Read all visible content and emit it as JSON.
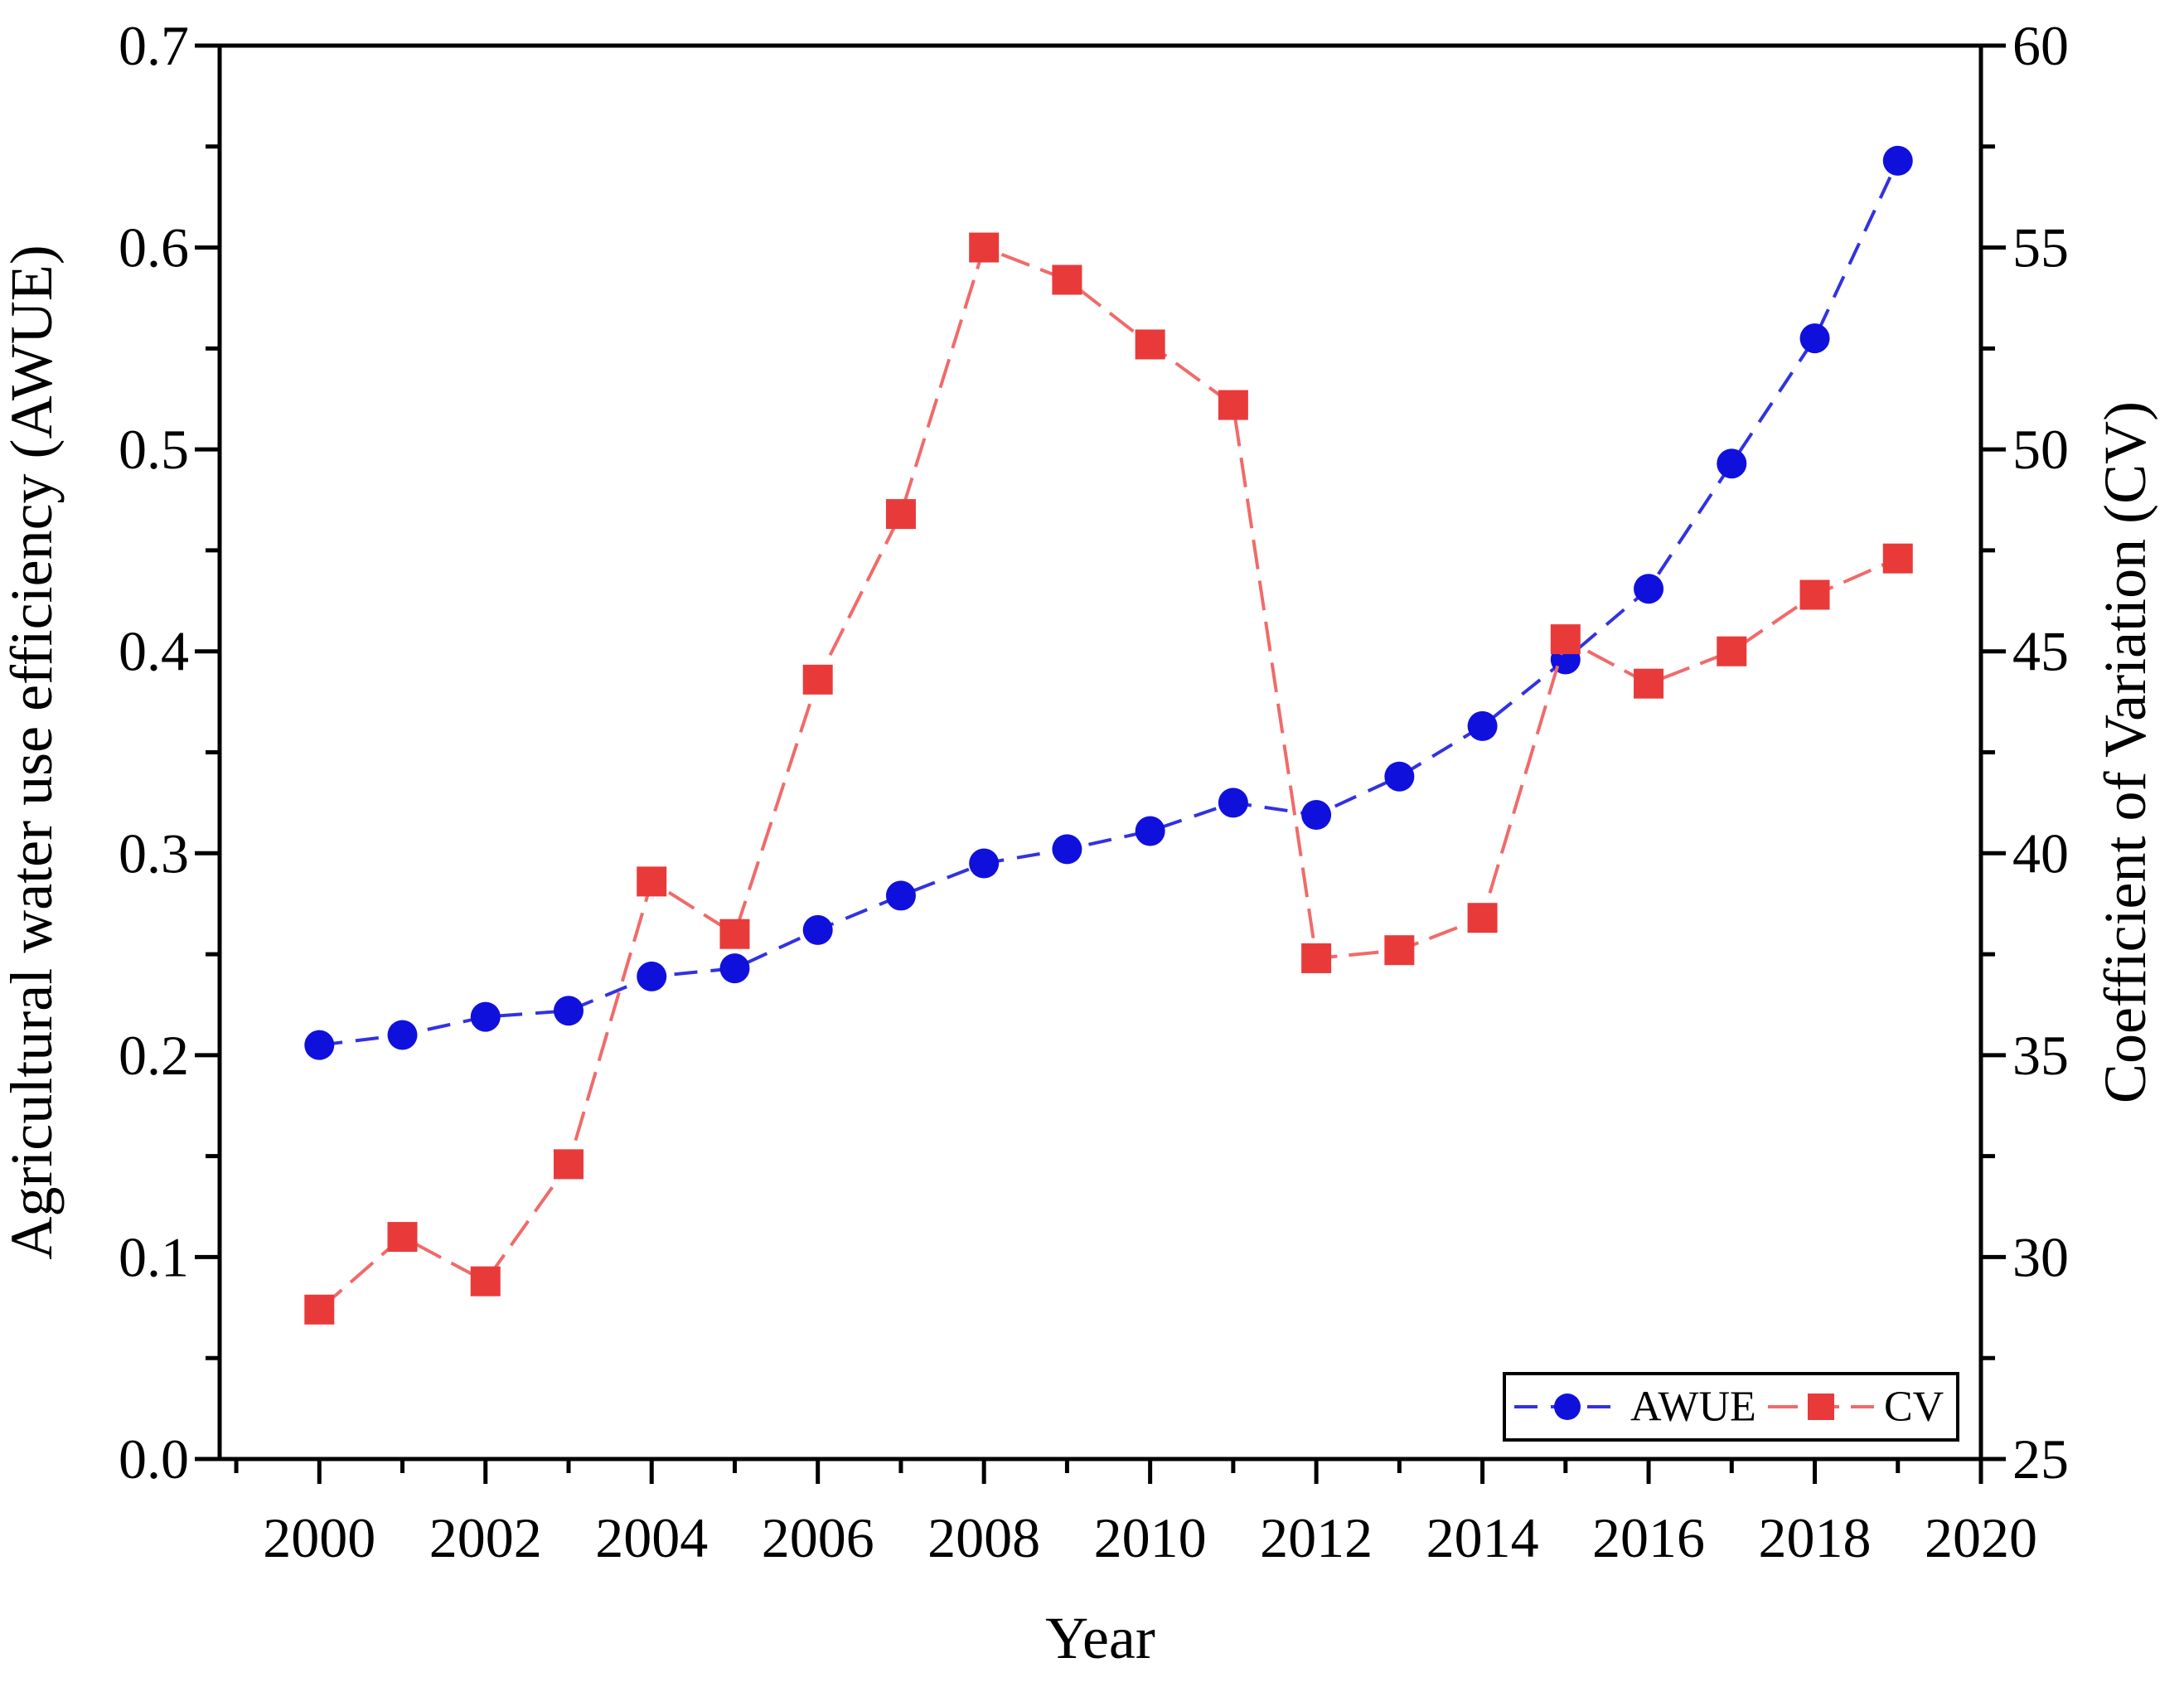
{
  "figure": {
    "aria_label": "Dual axis line chart of Agricultural water use efficiency (AWUE) and Coefficient of Variation (CV) from 2000 to 2019"
  },
  "chart_data": {
    "type": "line",
    "title": "",
    "x": [
      2000,
      2001,
      2002,
      2003,
      2004,
      2005,
      2006,
      2007,
      2008,
      2009,
      2010,
      2011,
      2012,
      2013,
      2014,
      2015,
      2016,
      2017,
      2018,
      2019
    ],
    "series": [
      {
        "name": "AWUE",
        "axis": "left",
        "marker": "circle",
        "line_color": "#3232e2",
        "marker_color": "#1010dd",
        "dash": "28 16",
        "values": [
          0.205,
          0.21,
          0.219,
          0.222,
          0.239,
          0.243,
          0.262,
          0.279,
          0.295,
          0.302,
          0.311,
          0.325,
          0.319,
          0.338,
          0.363,
          0.396,
          0.431,
          0.493,
          0.555,
          0.643
        ]
      },
      {
        "name": "CV",
        "axis": "right",
        "marker": "square",
        "line_color": "#f16a6a",
        "marker_color": "#e93a3a",
        "dash": "36 14",
        "values": [
          28.7,
          30.5,
          29.4,
          32.3,
          39.3,
          38.0,
          44.3,
          48.4,
          55.0,
          54.2,
          52.6,
          51.1,
          37.4,
          37.6,
          38.4,
          45.3,
          44.2,
          45.0,
          46.4,
          47.3
        ]
      }
    ],
    "x_axis": {
      "label": "Year",
      "range": [
        1998.8,
        2020
      ],
      "major_ticks": [
        2000,
        2002,
        2004,
        2006,
        2008,
        2010,
        2012,
        2014,
        2016,
        2018,
        2020
      ],
      "major_labels": [
        "2000",
        "2002",
        "2004",
        "2006",
        "2008",
        "2010",
        "2012",
        "2014",
        "2016",
        "2018",
        "2020"
      ],
      "minor_ticks": [
        1999,
        2001,
        2003,
        2005,
        2007,
        2009,
        2011,
        2013,
        2015,
        2017,
        2019
      ]
    },
    "left_axis": {
      "label": "Agricultural water use efficiency (AWUE)",
      "range": [
        0.0,
        0.7
      ],
      "major_ticks": [
        0.0,
        0.1,
        0.2,
        0.3,
        0.4,
        0.5,
        0.6,
        0.7
      ],
      "major_labels": [
        "0.0",
        "0.1",
        "0.2",
        "0.3",
        "0.4",
        "0.5",
        "0.6",
        "0.7"
      ],
      "minor_ticks": [
        0.05,
        0.15,
        0.25,
        0.35,
        0.45,
        0.55,
        0.65
      ]
    },
    "right_axis": {
      "label": "Coefficient of Variation (CV)",
      "range": [
        25,
        60
      ],
      "major_ticks": [
        25,
        30,
        35,
        40,
        45,
        50,
        55,
        60
      ],
      "major_labels": [
        "25",
        "30",
        "35",
        "40",
        "45",
        "50",
        "55",
        "60"
      ],
      "minor_ticks": [
        27.5,
        32.5,
        37.5,
        42.5,
        47.5,
        52.5,
        57.5
      ]
    },
    "legend": {
      "position": "bottom-right",
      "items": [
        "AWUE",
        "CV"
      ]
    },
    "grid": false,
    "axis_color": "#000000"
  }
}
